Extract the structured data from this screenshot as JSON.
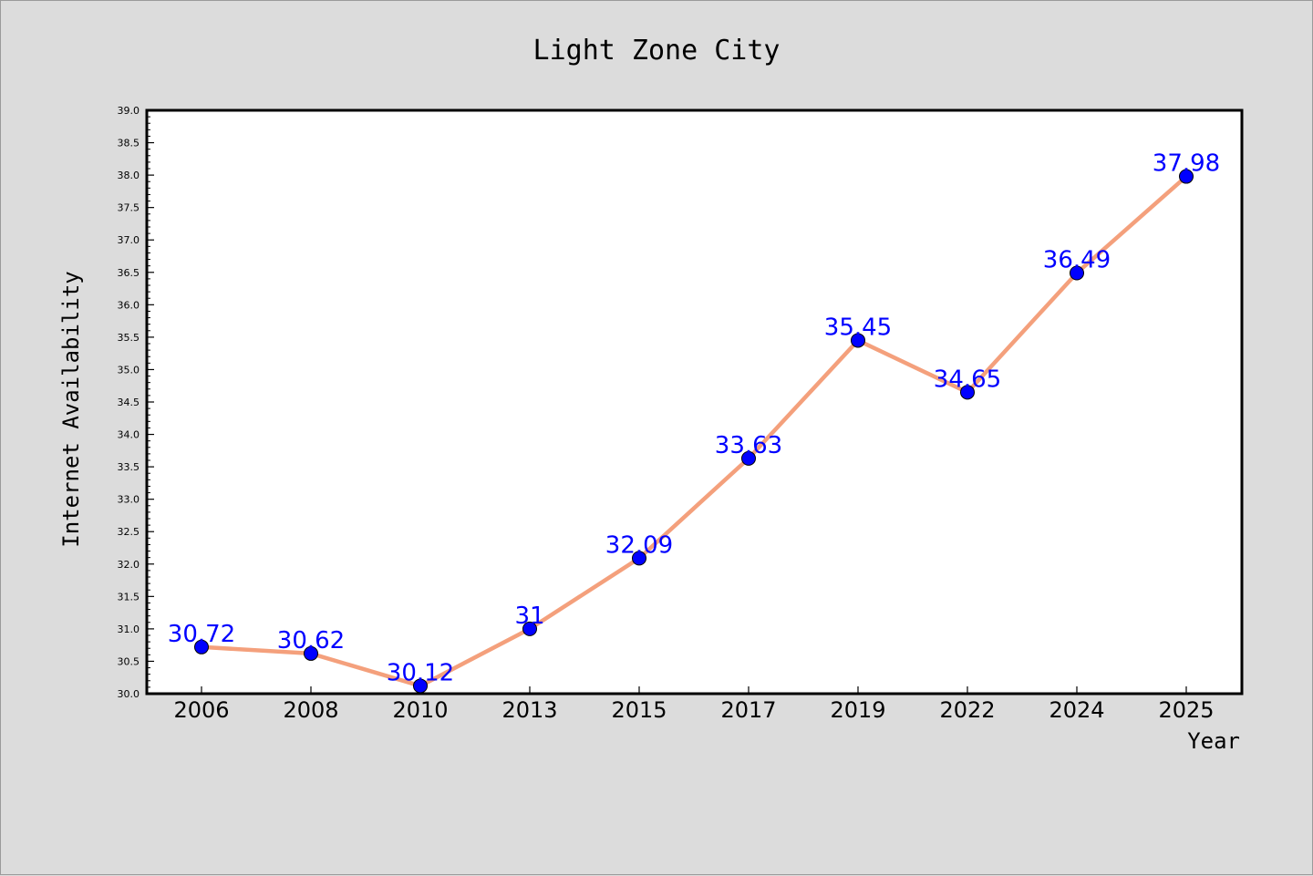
{
  "chart_data": {
    "type": "line",
    "title": "Light Zone City",
    "xlabel": "Year",
    "ylabel": "Internet Availability",
    "categories": [
      "2006",
      "2008",
      "2010",
      "2013",
      "2015",
      "2017",
      "2019",
      "2022",
      "2024",
      "2025"
    ],
    "values": [
      30.72,
      30.62,
      30.12,
      31,
      32.09,
      33.63,
      35.45,
      34.65,
      36.49,
      37.98
    ],
    "data_labels": [
      "30.72",
      "30.62",
      "30.12",
      "31",
      "32.09",
      "33.63",
      "35.45",
      "34.65",
      "36.49",
      "37.98"
    ],
    "ylim": [
      30.0,
      39.0
    ],
    "y_ticks": [
      "30.0",
      "30.5",
      "31.0",
      "31.5",
      "32.0",
      "32.5",
      "33.0",
      "33.5",
      "34.0",
      "34.5",
      "35.0",
      "35.5",
      "36.0",
      "36.5",
      "37.0",
      "37.5",
      "38.0",
      "38.5",
      "39.0"
    ],
    "grid": false,
    "legend": "none",
    "colors": {
      "background": "#dcdcdc",
      "plot_background": "#ffffff",
      "line": "#f4a07c",
      "marker": "#0000ff",
      "data_label": "#0000ff"
    }
  }
}
